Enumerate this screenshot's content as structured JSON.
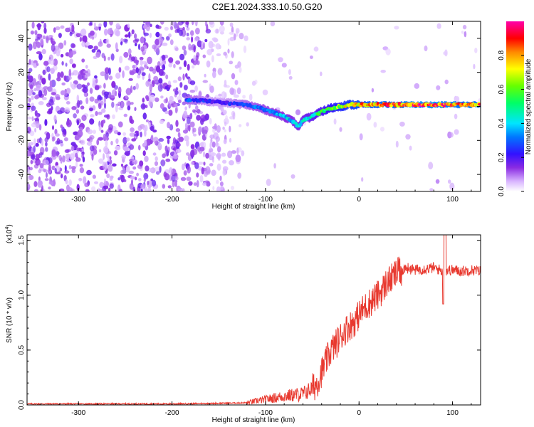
{
  "title": "C2E1.2024.333.10.50.G20",
  "colorbar": {
    "label": "Normalized spectral amplitude",
    "ticks": [
      "0.0",
      "0.2",
      "0.4",
      "0.6",
      "0.8"
    ],
    "tick_values": [
      0.0,
      0.2,
      0.4,
      0.6,
      0.8
    ],
    "range": [
      0,
      1
    ]
  },
  "chart_data": [
    {
      "type": "heatmap",
      "xlabel": "Height of straight line (km)",
      "ylabel": "Frequency (Hz)",
      "xlim": [
        -355,
        130
      ],
      "ylim": [
        -50,
        50
      ],
      "x_ticks": [
        "-300",
        "-200",
        "-100",
        "0",
        "100"
      ],
      "x_tick_values": [
        -300,
        -200,
        -100,
        0,
        100
      ],
      "y_ticks": [
        "-40",
        "-20",
        "0",
        "20",
        "40"
      ],
      "y_tick_values": [
        -40,
        -20,
        0,
        20,
        40
      ],
      "colormap": "rainbow (white-purple-blue-cyan-green-yellow-red-magenta)",
      "ridge_frequency": {
        "x": [
          -180,
          -160,
          -140,
          -120,
          -100,
          -90,
          -80,
          -70,
          -65,
          -60,
          -50,
          -40,
          -30,
          -20,
          -10,
          0,
          20,
          40,
          60,
          80,
          100,
          130
        ],
        "y": [
          4,
          3,
          2,
          1,
          -2,
          -4,
          -6,
          -9,
          -12,
          -8,
          -6,
          -3,
          -1,
          0,
          1,
          1,
          1,
          1,
          1,
          1,
          1,
          1
        ]
      },
      "ridge_amplitude": {
        "x": [
          -180,
          -150,
          -120,
          -100,
          -80,
          -60,
          -40,
          -20,
          0,
          20,
          40,
          60,
          80,
          100,
          130
        ],
        "y": [
          0.3,
          0.2,
          0.3,
          0.35,
          0.4,
          0.45,
          0.55,
          0.7,
          0.8,
          0.85,
          0.9,
          0.95,
          0.95,
          0.9,
          0.9
        ]
      },
      "grid": false
    },
    {
      "type": "line",
      "xlabel": "Height of straight line (km)",
      "ylabel": "SNR (10 * v/v)",
      "y_multiplier": "(x10",
      "y_multiplier_exp": "4",
      "y_multiplier_close": ")",
      "xlim": [
        -355,
        130
      ],
      "ylim": [
        0,
        1.55
      ],
      "x_ticks": [
        "-300",
        "-200",
        "-100",
        "0",
        "100"
      ],
      "x_tick_values": [
        -300,
        -200,
        -100,
        0,
        100
      ],
      "y_ticks": [
        "0.0",
        "0.5",
        "1.0",
        "1.5"
      ],
      "y_tick_values": [
        0.0,
        0.5,
        1.0,
        1.5
      ],
      "series": [
        {
          "color": "#e8392f",
          "x": [
            -355,
            -300,
            -250,
            -200,
            -150,
            -120,
            -100,
            -80,
            -60,
            -50,
            -45,
            -40,
            -35,
            -30,
            -25,
            -20,
            -15,
            -10,
            -5,
            0,
            5,
            10,
            15,
            20,
            25,
            30,
            35,
            40,
            45,
            50,
            55,
            60,
            70,
            80,
            90,
            100,
            110,
            120,
            130
          ],
          "y": [
            0.01,
            0.01,
            0.01,
            0.01,
            0.015,
            0.02,
            0.05,
            0.08,
            0.1,
            0.15,
            0.2,
            0.3,
            0.4,
            0.5,
            0.55,
            0.62,
            0.68,
            0.72,
            0.76,
            0.82,
            0.88,
            0.92,
            0.96,
            1.0,
            1.05,
            1.12,
            1.15,
            1.2,
            1.22,
            1.25,
            1.24,
            1.23,
            1.24,
            1.25,
            1.22,
            1.23,
            1.22,
            1.23,
            1.22
          ]
        }
      ],
      "grid": false
    }
  ]
}
